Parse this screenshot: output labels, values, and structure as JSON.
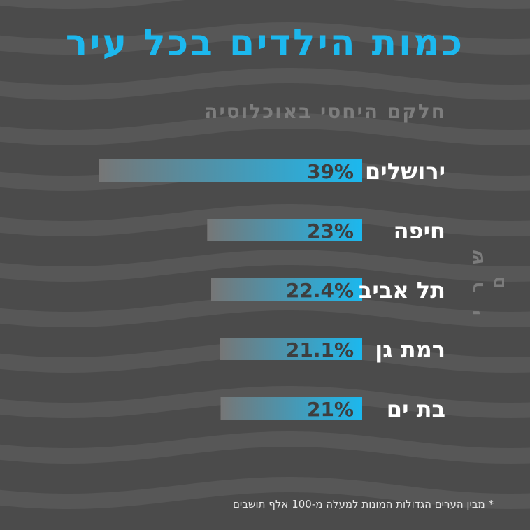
{
  "title": "כמות הילדים בכל עיר",
  "subtitle": "חלקם היחסי באוכלוסיה",
  "side_label": "ש ר י ם",
  "footnote": "* מבין הערים הגדולות המונות למעלה מ-100 אלף תושבים",
  "colors": {
    "background": "#4b4b4b",
    "wave": "#575757",
    "title": "#1cb8ee",
    "bar_start": "#767676",
    "bar_end": "#1cb8ee",
    "bar_label": "#3e3e3e",
    "city_label": "#ffffff"
  },
  "chart_data": {
    "type": "bar",
    "orientation": "horizontal",
    "categories": [
      "ירושלים",
      "חיפה",
      "תל אביב",
      "רמת גן",
      "בת ים"
    ],
    "values": [
      39,
      23,
      22.4,
      21.1,
      21
    ],
    "value_labels": [
      "39%",
      "23%",
      "22.4%",
      "21.1%",
      "21%"
    ],
    "title": "כמות הילדים בכל עיר",
    "ylabel": "",
    "xlabel": "",
    "unit": "%",
    "grid": false
  }
}
